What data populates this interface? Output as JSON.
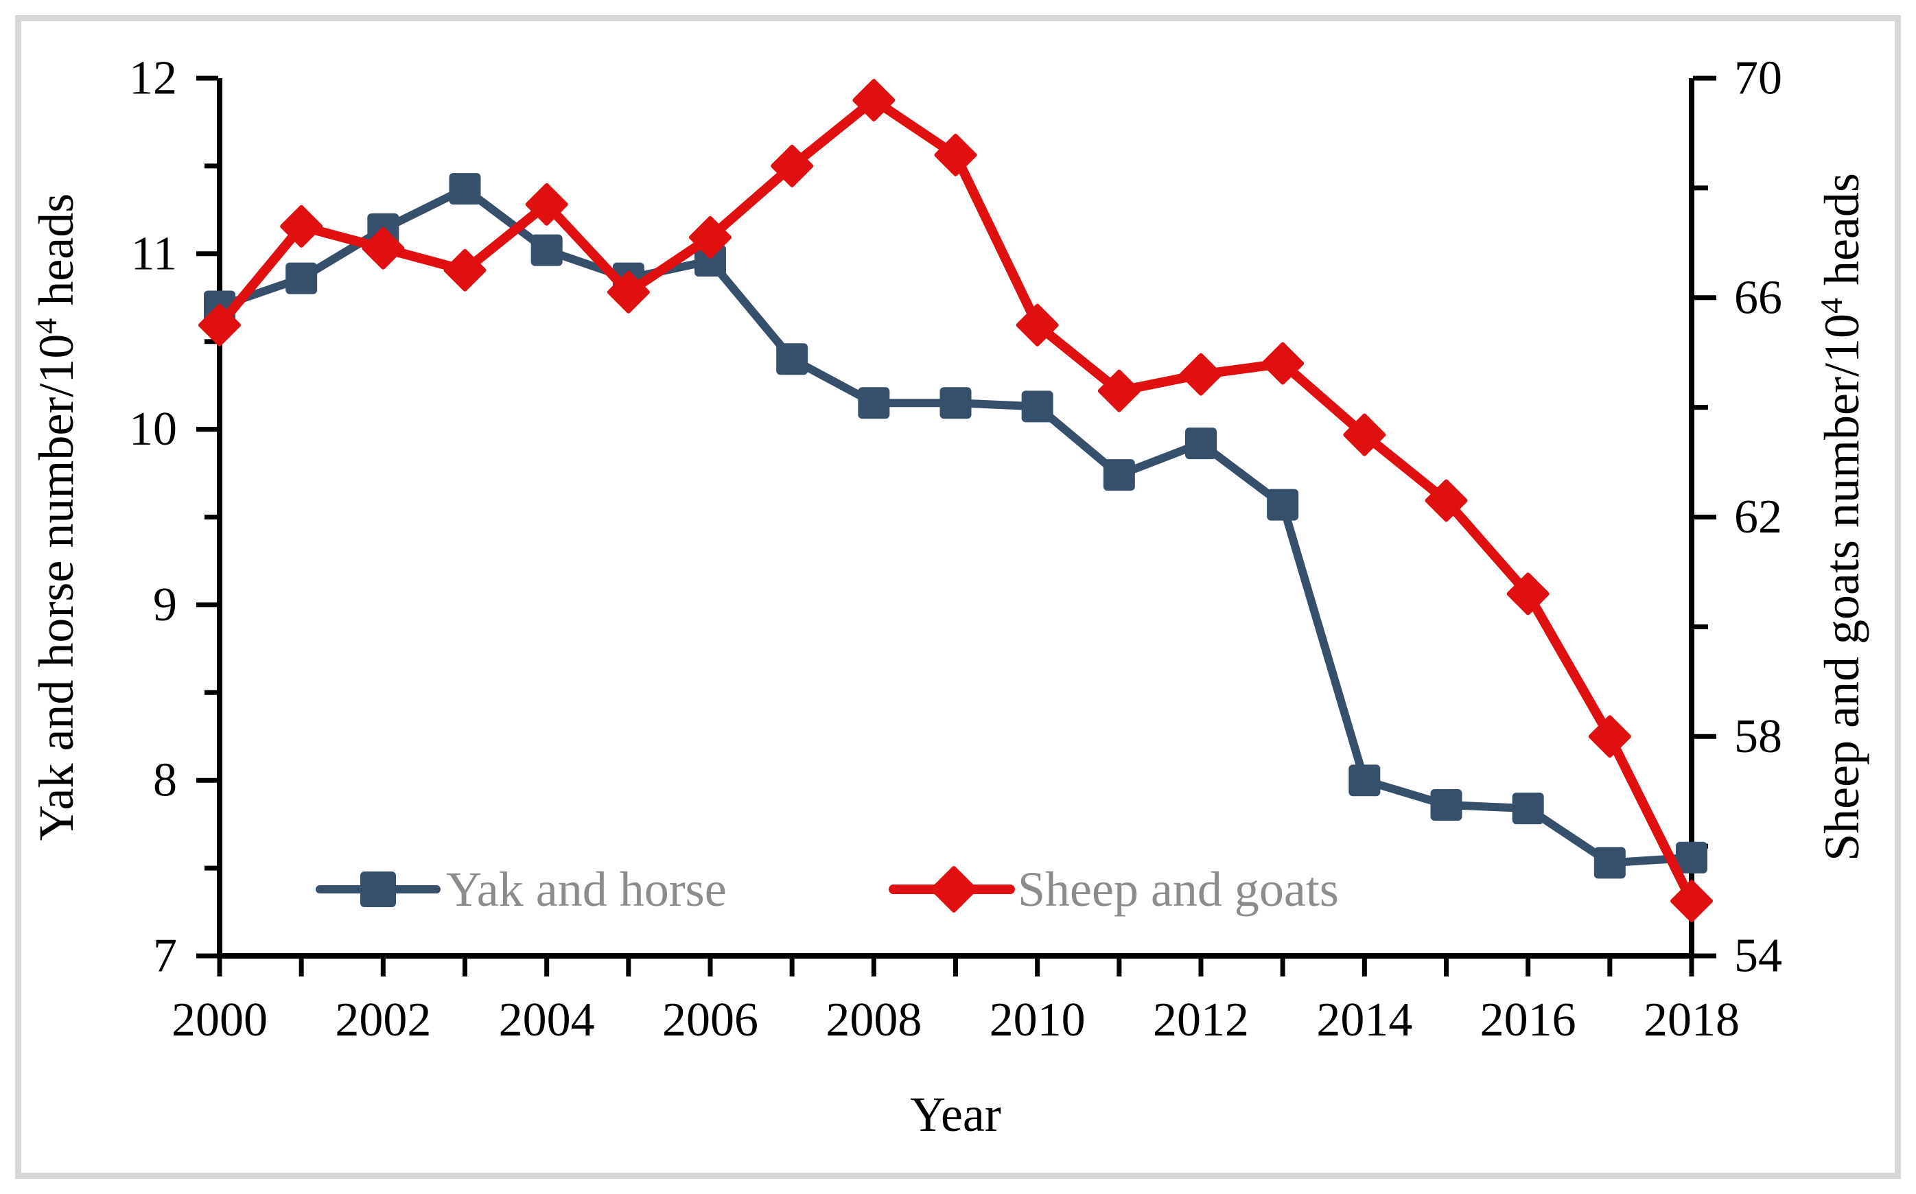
{
  "figure": {
    "background": "#ffffff",
    "border_color": "#d7d7d7",
    "title": ""
  },
  "chart_data": {
    "type": "line",
    "x": [
      2000,
      2001,
      2002,
      2003,
      2004,
      2005,
      2006,
      2007,
      2008,
      2009,
      2010,
      2011,
      2012,
      2013,
      2014,
      2015,
      2016,
      2017,
      2018
    ],
    "x_axis": {
      "title": "Year",
      "range": [
        2000,
        2018
      ],
      "labeled_ticks": [
        "2000",
        "2002",
        "2004",
        "2006",
        "2008",
        "2010",
        "2012",
        "2014",
        "2016",
        "2018"
      ],
      "labeled_tick_values": [
        2000,
        2002,
        2004,
        2006,
        2008,
        2010,
        2012,
        2014,
        2016,
        2018
      ],
      "minor_tick_every_year": true
    },
    "left_axis": {
      "title_parts": [
        {
          "text": "Yak and horse number/10"
        },
        {
          "text": "4",
          "superscript": true
        },
        {
          "text": " heads"
        }
      ],
      "range": [
        7,
        12
      ],
      "major_ticks": [
        7,
        8,
        9,
        10,
        11,
        12
      ],
      "tick_labels": [
        "7",
        "8",
        "9",
        "10",
        "11",
        "12"
      ],
      "minor_ticks": [
        7.5,
        8.5,
        9.5,
        10.5,
        11.5
      ]
    },
    "right_axis": {
      "title_parts": [
        {
          "text": "Sheep and goats number/10"
        },
        {
          "text": "4",
          "superscript": true
        },
        {
          "text": " heads"
        }
      ],
      "range": [
        54,
        70
      ],
      "major_ticks": [
        54,
        58,
        62,
        66,
        70
      ],
      "tick_labels": [
        "54",
        "58",
        "62",
        "66",
        "70"
      ],
      "minor_ticks": [
        56,
        60,
        64,
        68
      ]
    },
    "series": [
      {
        "name": "Yak and horse",
        "axis": "left",
        "color": "#36506c",
        "marker": "square",
        "values": [
          10.7,
          10.86,
          11.14,
          11.37,
          11.02,
          10.86,
          10.96,
          10.4,
          10.15,
          10.15,
          10.13,
          9.74,
          9.92,
          9.57,
          8.0,
          7.86,
          7.84,
          7.53,
          7.56
        ]
      },
      {
        "name": "Sheep and goats",
        "axis": "right",
        "color": "#e01010",
        "marker": "diamond",
        "values": [
          65.5,
          67.3,
          66.9,
          66.5,
          67.7,
          66.1,
          67.1,
          68.4,
          69.6,
          68.6,
          65.5,
          64.3,
          64.6,
          64.8,
          63.5,
          62.3,
          60.6,
          58.0,
          55.0
        ]
      }
    ],
    "legend": {
      "items": [
        "Yak and horse",
        "Sheep and goats"
      ],
      "text_color": "#8c8c8c",
      "position": "bottom-center-inside"
    },
    "grid": false,
    "axis_color": "#000000"
  }
}
